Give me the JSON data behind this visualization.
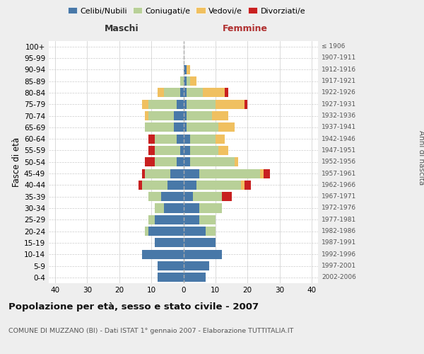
{
  "age_groups": [
    "0-4",
    "5-9",
    "10-14",
    "15-19",
    "20-24",
    "25-29",
    "30-34",
    "35-39",
    "40-44",
    "45-49",
    "50-54",
    "55-59",
    "60-64",
    "65-69",
    "70-74",
    "75-79",
    "80-84",
    "85-89",
    "90-94",
    "95-99",
    "100+"
  ],
  "birth_years": [
    "2002-2006",
    "1997-2001",
    "1992-1996",
    "1987-1991",
    "1982-1986",
    "1977-1981",
    "1972-1976",
    "1967-1971",
    "1962-1966",
    "1957-1961",
    "1952-1956",
    "1947-1951",
    "1942-1946",
    "1937-1941",
    "1932-1936",
    "1927-1931",
    "1922-1926",
    "1917-1921",
    "1912-1916",
    "1907-1911",
    "≤ 1906"
  ],
  "maschi": {
    "celibi": [
      8,
      8,
      13,
      9,
      11,
      9,
      6,
      7,
      5,
      4,
      2,
      1,
      2,
      3,
      3,
      2,
      1,
      0,
      0,
      0,
      0
    ],
    "coniugati": [
      0,
      0,
      0,
      0,
      1,
      2,
      3,
      4,
      8,
      8,
      7,
      8,
      7,
      9,
      8,
      9,
      5,
      1,
      0,
      0,
      0
    ],
    "vedovi": [
      0,
      0,
      0,
      0,
      0,
      0,
      0,
      0,
      0,
      0,
      0,
      0,
      0,
      0,
      1,
      2,
      2,
      0,
      0,
      0,
      0
    ],
    "divorziati": [
      0,
      0,
      0,
      0,
      0,
      0,
      0,
      0,
      1,
      1,
      3,
      2,
      2,
      0,
      0,
      0,
      0,
      0,
      0,
      0,
      0
    ]
  },
  "femmine": {
    "nubili": [
      7,
      8,
      12,
      10,
      7,
      5,
      5,
      3,
      4,
      5,
      2,
      2,
      2,
      1,
      1,
      1,
      1,
      1,
      1,
      0,
      0
    ],
    "coniugate": [
      0,
      0,
      0,
      0,
      3,
      5,
      7,
      9,
      14,
      19,
      14,
      9,
      8,
      10,
      8,
      9,
      5,
      1,
      0,
      0,
      0
    ],
    "vedove": [
      0,
      0,
      0,
      0,
      0,
      0,
      0,
      0,
      1,
      1,
      1,
      3,
      3,
      5,
      5,
      9,
      7,
      2,
      1,
      0,
      0
    ],
    "divorziate": [
      0,
      0,
      0,
      0,
      0,
      0,
      0,
      3,
      2,
      2,
      0,
      0,
      0,
      0,
      0,
      1,
      1,
      0,
      0,
      0,
      0
    ]
  },
  "colors": {
    "celibi_nubili": "#4878A8",
    "coniugati": "#B8D098",
    "vedovi": "#F0C060",
    "divorziati": "#C82020"
  },
  "xlim": [
    -42,
    42
  ],
  "xticks": [
    -40,
    -30,
    -20,
    -10,
    0,
    10,
    20,
    30,
    40
  ],
  "xtick_labels": [
    "40",
    "30",
    "20",
    "10",
    "0",
    "10",
    "20",
    "30",
    "40"
  ],
  "title_main": "Popolazione per età, sesso e stato civile - 2007",
  "title_sub": "COMUNE DI MUZZANO (BI) - Dati ISTAT 1° gennaio 2007 - Elaborazione TUTTITALIA.IT",
  "ylabel_left": "Fasce di età",
  "ylabel_right": "Anni di nascita",
  "maschi_label": "Maschi",
  "femmine_label": "Femmine",
  "legend_labels": [
    "Celibi/Nubili",
    "Coniugati/e",
    "Vedovi/e",
    "Divorziati/e"
  ],
  "bg_color": "#eeeeee",
  "plot_bg": "#ffffff"
}
